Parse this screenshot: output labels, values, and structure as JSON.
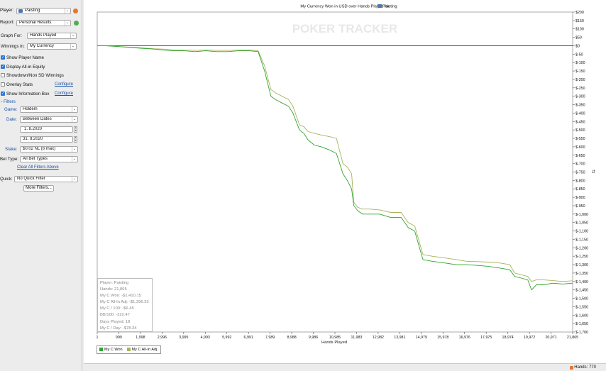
{
  "sidebar": {
    "player_label": "Player:",
    "player_value": "Paisting",
    "report_label": "Report:",
    "report_value": "Personal Results",
    "graph_for_label": "Graph For:",
    "graph_for_value": "Hands Played",
    "winnings_in_label": "Winnings in:",
    "winnings_in_value": "My Currency",
    "options": [
      {
        "label": "Show Player Name",
        "checked": true
      },
      {
        "label": "Display All-in Equity",
        "checked": true
      },
      {
        "label": "Showdown/Non SD Winnings",
        "checked": false
      },
      {
        "label": "Overlay Stats",
        "checked": false,
        "link": "Configure"
      },
      {
        "label": "Show Information Box",
        "checked": true,
        "link": "Configure"
      }
    ],
    "filters_header": "Filters",
    "game_label": "Game:",
    "game_value": "Holdem",
    "date_label": "Date:",
    "date_value": "Between Dates",
    "date_from": "1. 8.2020",
    "date_to": "31. 8.2020",
    "stake_label": "Stake:",
    "stake_value": "$0.02 NL (6 max)",
    "bet_type_label": "Bet Type:",
    "bet_type_value": "All Bet Types",
    "clear_filters": "Clear All Filters Above",
    "quick_label": "Quick:",
    "quick_value": "No Quick Filter",
    "more_filters": "More Filters..."
  },
  "chart_header": {
    "title_prefix": "My Currency Won in USD over Hands Played for",
    "title_player": "Paisting",
    "watermark": "POKER TRACKER"
  },
  "info_box": [
    "Player: Paisting",
    "Hands: 21,865",
    "My C Won: -$1,410.15",
    "My C All-In Adj: -$1,396.33",
    "My C / 100: -$6.45",
    "BB/100: -322.47",
    "Days Played: 18",
    "My C / Day: -$78.34"
  ],
  "status": {
    "hands": "Hands: 770"
  },
  "colors": {
    "won": "#2ea52e",
    "allin": "#a9b25a"
  },
  "chart_data": {
    "type": "line",
    "title": "My Currency Won in USD over Hands Played for Paisting",
    "xlabel": "Hands Played",
    "ylabel": "",
    "xlim": [
      0,
      21865
    ],
    "ylim": [
      -1700,
      200
    ],
    "x_ticks": [
      "1",
      "999",
      "1,998",
      "2,996",
      "3,995",
      "4,993",
      "5,992",
      "6,991",
      "7,989",
      "8,988",
      "9,986",
      "10,985",
      "11,983",
      "12,982",
      "13,981",
      "14,979",
      "15,978",
      "16,976",
      "17,975",
      "18,974",
      "19,972",
      "20,971",
      "21,865"
    ],
    "y_ticks": [
      "$200",
      "$150",
      "$100",
      "$50",
      "$0",
      "$-50",
      "$-100",
      "$-150",
      "$-200",
      "$-250",
      "$-300",
      "$-350",
      "$-400",
      "$-450",
      "$-500",
      "$-550",
      "$-600",
      "$-650",
      "$-700",
      "$-750",
      "$-800",
      "$-850",
      "$-900",
      "$-950",
      "$-1,000",
      "$-1,050",
      "$-1,100",
      "$-1,150",
      "$-1,200",
      "$-1,250",
      "$-1,300",
      "$-1,350",
      "$-1,400",
      "$-1,450",
      "$-1,500",
      "$-1,550",
      "$-1,600",
      "$-1,650",
      "$-1,700"
    ],
    "legend_position": "bottom-left",
    "series": [
      {
        "name": "My C Won",
        "x": [
          0,
          400,
          999,
          1500,
          1998,
          2600,
          3000,
          3500,
          3995,
          4500,
          5000,
          5500,
          5992,
          6500,
          6991,
          7400,
          7700,
          7989,
          8200,
          8500,
          8800,
          9000,
          9300,
          9500,
          9700,
          9986,
          10300,
          10700,
          11000,
          11300,
          11500,
          11700,
          11800,
          11983,
          12200,
          12500,
          12982,
          13500,
          13981,
          14300,
          14600,
          14979,
          15400,
          15978,
          16500,
          16976,
          17500,
          17975,
          18500,
          18974,
          19200,
          19500,
          19800,
          19972,
          20200,
          20500,
          20971,
          21400,
          21865
        ],
        "y": [
          0,
          0,
          -5,
          -10,
          -15,
          -20,
          -25,
          -30,
          -30,
          -35,
          -30,
          -35,
          -35,
          -30,
          -30,
          -35,
          -150,
          -300,
          -320,
          -340,
          -360,
          -400,
          -500,
          -520,
          -560,
          -590,
          -600,
          -620,
          -640,
          -760,
          -800,
          -850,
          -950,
          -980,
          -1000,
          -1000,
          -1000,
          -1020,
          -1020,
          -1080,
          -1100,
          -1270,
          -1280,
          -1290,
          -1300,
          -1300,
          -1305,
          -1310,
          -1320,
          -1330,
          -1370,
          -1380,
          -1390,
          -1450,
          -1420,
          -1420,
          -1410,
          -1415,
          -1410
        ]
      },
      {
        "name": "My C All-In Adj.",
        "x": [
          0,
          400,
          999,
          1500,
          1998,
          2600,
          3000,
          3500,
          3995,
          4500,
          5000,
          5500,
          5992,
          6500,
          6991,
          7400,
          7700,
          7989,
          8200,
          8500,
          8800,
          9000,
          9300,
          9500,
          9700,
          9986,
          10300,
          10700,
          11000,
          11300,
          11500,
          11700,
          11800,
          11983,
          12200,
          12500,
          12982,
          13500,
          13981,
          14300,
          14600,
          14979,
          15400,
          15978,
          16500,
          16976,
          17500,
          17975,
          18500,
          18974,
          19200,
          19500,
          19800,
          19972,
          20200,
          20500,
          20971,
          21400,
          21865
        ],
        "y": [
          0,
          0,
          -5,
          -8,
          -12,
          -18,
          -20,
          -25,
          -25,
          -28,
          -25,
          -28,
          -28,
          -25,
          -25,
          -30,
          -120,
          -260,
          -280,
          -300,
          -320,
          -360,
          -470,
          -480,
          -510,
          -520,
          -530,
          -540,
          -550,
          -700,
          -720,
          -760,
          -930,
          -960,
          -970,
          -970,
          -975,
          -990,
          -990,
          -1050,
          -1070,
          -1240,
          -1250,
          -1260,
          -1270,
          -1280,
          -1282,
          -1285,
          -1290,
          -1300,
          -1350,
          -1360,
          -1370,
          -1400,
          -1390,
          -1390,
          -1395,
          -1400,
          -1396
        ]
      }
    ]
  }
}
